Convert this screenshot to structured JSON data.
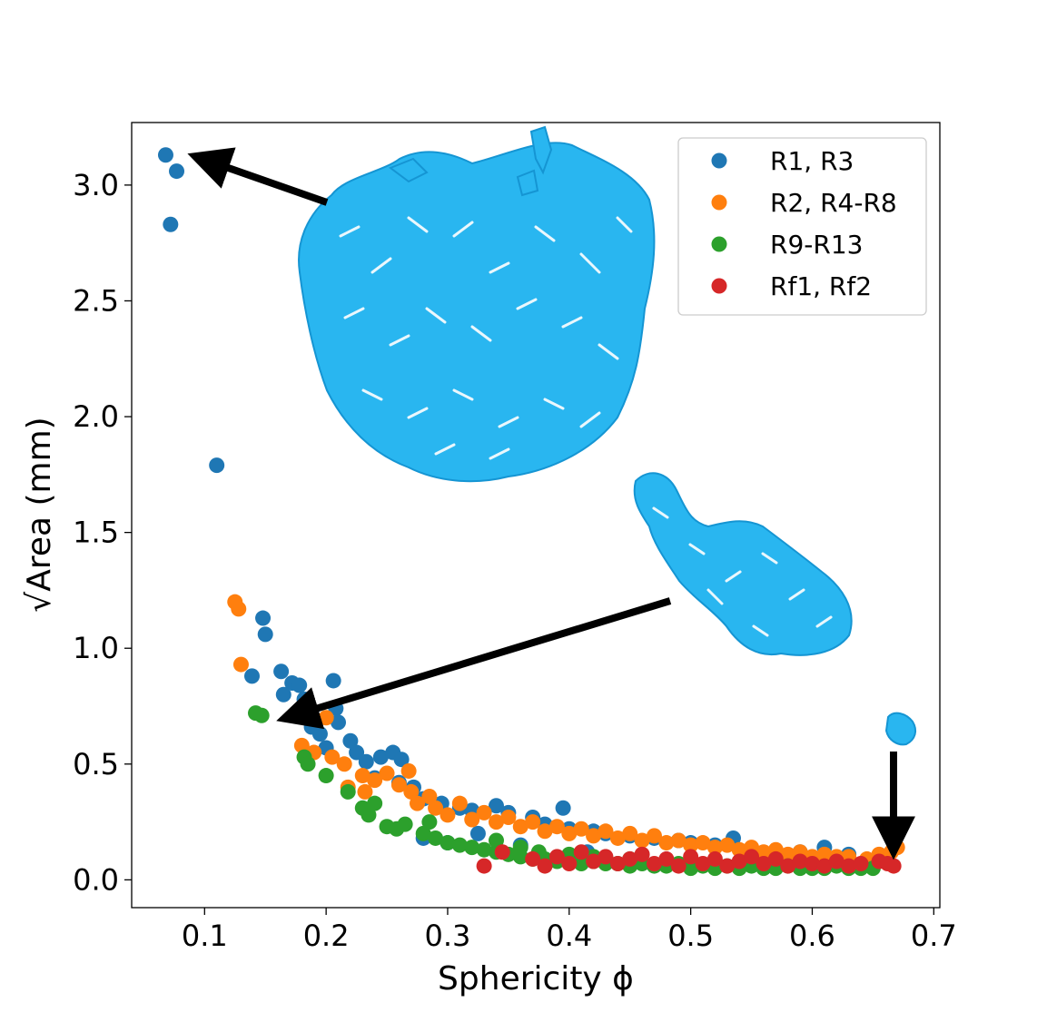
{
  "chart_data": {
    "type": "scatter",
    "xlabel": "Sphericity ϕ",
    "ylabel": "√Area (mm)",
    "xlim": [
      0.04,
      0.705
    ],
    "ylim": [
      -0.12,
      3.27
    ],
    "xticks": [
      0.1,
      0.2,
      0.3,
      0.4,
      0.5,
      0.6,
      0.7
    ],
    "xtick_labels": [
      "0.1",
      "0.2",
      "0.3",
      "0.4",
      "0.5",
      "0.6",
      "0.7"
    ],
    "yticks": [
      0.0,
      0.5,
      1.0,
      1.5,
      2.0,
      2.5,
      3.0
    ],
    "ytick_labels": [
      "0.0",
      "0.5",
      "1.0",
      "1.5",
      "2.0",
      "2.5",
      "3.0"
    ],
    "grid": false,
    "legend_position": "top-right",
    "series": [
      {
        "name": "R1, R3",
        "color": "#1f77b4",
        "points": [
          [
            0.068,
            3.13
          ],
          [
            0.077,
            3.06
          ],
          [
            0.072,
            2.83
          ],
          [
            0.11,
            1.79
          ],
          [
            0.148,
            1.13
          ],
          [
            0.15,
            1.06
          ],
          [
            0.139,
            0.88
          ],
          [
            0.163,
            0.9
          ],
          [
            0.172,
            0.85
          ],
          [
            0.178,
            0.84
          ],
          [
            0.165,
            0.8
          ],
          [
            0.182,
            0.78
          ],
          [
            0.206,
            0.86
          ],
          [
            0.208,
            0.74
          ],
          [
            0.21,
            0.68
          ],
          [
            0.188,
            0.66
          ],
          [
            0.195,
            0.63
          ],
          [
            0.2,
            0.57
          ],
          [
            0.22,
            0.6
          ],
          [
            0.225,
            0.55
          ],
          [
            0.233,
            0.51
          ],
          [
            0.245,
            0.53
          ],
          [
            0.255,
            0.55
          ],
          [
            0.262,
            0.52
          ],
          [
            0.24,
            0.44
          ],
          [
            0.26,
            0.42
          ],
          [
            0.272,
            0.4
          ],
          [
            0.28,
            0.35
          ],
          [
            0.295,
            0.33
          ],
          [
            0.31,
            0.31
          ],
          [
            0.32,
            0.3
          ],
          [
            0.34,
            0.32
          ],
          [
            0.35,
            0.29
          ],
          [
            0.37,
            0.27
          ],
          [
            0.395,
            0.31
          ],
          [
            0.38,
            0.24
          ],
          [
            0.4,
            0.22
          ],
          [
            0.42,
            0.21
          ],
          [
            0.43,
            0.2
          ],
          [
            0.45,
            0.19
          ],
          [
            0.47,
            0.18
          ],
          [
            0.49,
            0.17
          ],
          [
            0.5,
            0.16
          ],
          [
            0.52,
            0.15
          ],
          [
            0.535,
            0.18
          ],
          [
            0.55,
            0.13
          ],
          [
            0.57,
            0.12
          ],
          [
            0.59,
            0.12
          ],
          [
            0.61,
            0.14
          ],
          [
            0.63,
            0.11
          ],
          [
            0.28,
            0.18
          ],
          [
            0.3,
            0.16
          ],
          [
            0.325,
            0.2
          ],
          [
            0.36,
            0.15
          ],
          [
            0.415,
            0.12
          ]
        ]
      },
      {
        "name": "R2, R4-R8",
        "color": "#ff7f0e",
        "points": [
          [
            0.125,
            1.2
          ],
          [
            0.128,
            1.17
          ],
          [
            0.13,
            0.93
          ],
          [
            0.2,
            0.7
          ],
          [
            0.18,
            0.58
          ],
          [
            0.19,
            0.55
          ],
          [
            0.205,
            0.53
          ],
          [
            0.215,
            0.5
          ],
          [
            0.23,
            0.45
          ],
          [
            0.24,
            0.43
          ],
          [
            0.25,
            0.46
          ],
          [
            0.26,
            0.41
          ],
          [
            0.27,
            0.38
          ],
          [
            0.275,
            0.33
          ],
          [
            0.285,
            0.36
          ],
          [
            0.29,
            0.31
          ],
          [
            0.3,
            0.28
          ],
          [
            0.31,
            0.33
          ],
          [
            0.32,
            0.26
          ],
          [
            0.33,
            0.29
          ],
          [
            0.34,
            0.25
          ],
          [
            0.35,
            0.27
          ],
          [
            0.36,
            0.23
          ],
          [
            0.37,
            0.25
          ],
          [
            0.38,
            0.21
          ],
          [
            0.39,
            0.23
          ],
          [
            0.4,
            0.2
          ],
          [
            0.41,
            0.22
          ],
          [
            0.42,
            0.19
          ],
          [
            0.43,
            0.21
          ],
          [
            0.44,
            0.18
          ],
          [
            0.45,
            0.2
          ],
          [
            0.46,
            0.17
          ],
          [
            0.47,
            0.19
          ],
          [
            0.48,
            0.16
          ],
          [
            0.49,
            0.17
          ],
          [
            0.5,
            0.15
          ],
          [
            0.51,
            0.16
          ],
          [
            0.52,
            0.14
          ],
          [
            0.53,
            0.15
          ],
          [
            0.54,
            0.13
          ],
          [
            0.55,
            0.14
          ],
          [
            0.56,
            0.12
          ],
          [
            0.57,
            0.13
          ],
          [
            0.58,
            0.11
          ],
          [
            0.59,
            0.12
          ],
          [
            0.6,
            0.1
          ],
          [
            0.61,
            0.11
          ],
          [
            0.62,
            0.1
          ],
          [
            0.63,
            0.1
          ],
          [
            0.645,
            0.09
          ],
          [
            0.655,
            0.11
          ],
          [
            0.665,
            0.12
          ],
          [
            0.67,
            0.14
          ],
          [
            0.218,
            0.4
          ],
          [
            0.232,
            0.38
          ],
          [
            0.268,
            0.47
          ]
        ]
      },
      {
        "name": "R9-R13",
        "color": "#2ca02c",
        "points": [
          [
            0.142,
            0.72
          ],
          [
            0.147,
            0.71
          ],
          [
            0.182,
            0.53
          ],
          [
            0.185,
            0.5
          ],
          [
            0.2,
            0.45
          ],
          [
            0.218,
            0.38
          ],
          [
            0.23,
            0.31
          ],
          [
            0.235,
            0.28
          ],
          [
            0.24,
            0.33
          ],
          [
            0.25,
            0.23
          ],
          [
            0.258,
            0.22
          ],
          [
            0.265,
            0.24
          ],
          [
            0.28,
            0.2
          ],
          [
            0.285,
            0.25
          ],
          [
            0.29,
            0.18
          ],
          [
            0.3,
            0.16
          ],
          [
            0.31,
            0.15
          ],
          [
            0.32,
            0.14
          ],
          [
            0.33,
            0.13
          ],
          [
            0.34,
            0.12
          ],
          [
            0.35,
            0.11
          ],
          [
            0.36,
            0.1
          ],
          [
            0.37,
            0.09
          ],
          [
            0.38,
            0.09
          ],
          [
            0.39,
            0.08
          ],
          [
            0.4,
            0.08
          ],
          [
            0.41,
            0.07
          ],
          [
            0.42,
            0.08
          ],
          [
            0.43,
            0.07
          ],
          [
            0.44,
            0.07
          ],
          [
            0.45,
            0.06
          ],
          [
            0.46,
            0.07
          ],
          [
            0.47,
            0.06
          ],
          [
            0.48,
            0.06
          ],
          [
            0.49,
            0.07
          ],
          [
            0.5,
            0.05
          ],
          [
            0.51,
            0.06
          ],
          [
            0.52,
            0.05
          ],
          [
            0.53,
            0.06
          ],
          [
            0.54,
            0.05
          ],
          [
            0.55,
            0.06
          ],
          [
            0.56,
            0.05
          ],
          [
            0.57,
            0.05
          ],
          [
            0.58,
            0.06
          ],
          [
            0.59,
            0.05
          ],
          [
            0.6,
            0.05
          ],
          [
            0.61,
            0.05
          ],
          [
            0.62,
            0.06
          ],
          [
            0.63,
            0.05
          ],
          [
            0.64,
            0.05
          ],
          [
            0.65,
            0.05
          ],
          [
            0.34,
            0.17
          ],
          [
            0.36,
            0.14
          ],
          [
            0.375,
            0.12
          ],
          [
            0.4,
            0.11
          ],
          [
            0.42,
            0.1
          ],
          [
            0.45,
            0.09
          ]
        ]
      },
      {
        "name": "Rf1, Rf2",
        "color": "#d62728",
        "points": [
          [
            0.33,
            0.06
          ],
          [
            0.345,
            0.12
          ],
          [
            0.37,
            0.09
          ],
          [
            0.38,
            0.06
          ],
          [
            0.39,
            0.1
          ],
          [
            0.4,
            0.07
          ],
          [
            0.41,
            0.12
          ],
          [
            0.42,
            0.08
          ],
          [
            0.43,
            0.1
          ],
          [
            0.44,
            0.07
          ],
          [
            0.45,
            0.09
          ],
          [
            0.46,
            0.11
          ],
          [
            0.47,
            0.07
          ],
          [
            0.48,
            0.09
          ],
          [
            0.49,
            0.06
          ],
          [
            0.5,
            0.1
          ],
          [
            0.51,
            0.07
          ],
          [
            0.52,
            0.09
          ],
          [
            0.53,
            0.06
          ],
          [
            0.54,
            0.08
          ],
          [
            0.55,
            0.1
          ],
          [
            0.56,
            0.07
          ],
          [
            0.57,
            0.09
          ],
          [
            0.58,
            0.06
          ],
          [
            0.59,
            0.08
          ],
          [
            0.6,
            0.07
          ],
          [
            0.61,
            0.06
          ],
          [
            0.62,
            0.08
          ],
          [
            0.63,
            0.06
          ],
          [
            0.64,
            0.07
          ],
          [
            0.655,
            0.08
          ],
          [
            0.662,
            0.07
          ],
          [
            0.667,
            0.06
          ]
        ]
      }
    ]
  }
}
